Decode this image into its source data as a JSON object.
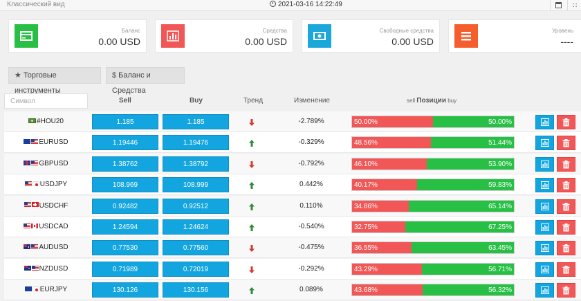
{
  "topbar": {
    "view_mode": "Классический вид",
    "datetime": "2021-03-16 14:22:49"
  },
  "cards": [
    {
      "label": "Баланс",
      "value": "0.00 USD",
      "color": "#27c045",
      "icon": "credit-card-icon"
    },
    {
      "label": "Средства",
      "value": "0.00 USD",
      "color": "#f25757",
      "icon": "bar-chart-icon"
    },
    {
      "label": "Свободные средства",
      "value": "0.00 USD",
      "color": "#1ba7da",
      "icon": "money-icon"
    },
    {
      "label": "Уровень",
      "value": "----",
      "color": "#f55d2c",
      "icon": "list-icon"
    }
  ],
  "tabs": [
    {
      "label": "Торговые инструменты",
      "icon": "star-icon"
    },
    {
      "label": "Баланс и Средства",
      "icon": "dollar-icon"
    }
  ],
  "table": {
    "search_placeholder": "Символ",
    "headers": {
      "sell": "Sell",
      "buy": "Buy",
      "trend": "Тренд",
      "change": "Изменение",
      "positions_sell": "sell",
      "positions_title": "Позиции",
      "positions_buy": "buy"
    },
    "rows": [
      {
        "symbol": "#HOU20",
        "flags": [
          "cfd"
        ],
        "sell": "1.185",
        "buy": "1.185",
        "trend": "down",
        "change": "-2.789%",
        "sell_pct": "50.00%",
        "buy_pct": "50.00%",
        "sell_frac": 0.5
      },
      {
        "symbol": "EURUSD",
        "flags": [
          "eu",
          "us"
        ],
        "sell": "1.19446",
        "buy": "1.19476",
        "trend": "up",
        "change": "-0.329%",
        "sell_pct": "48.56%",
        "buy_pct": "51.44%",
        "sell_frac": 0.4856
      },
      {
        "symbol": "GBPUSD",
        "flags": [
          "gb",
          "us"
        ],
        "sell": "1.38762",
        "buy": "1.38792",
        "trend": "down",
        "change": "-0.792%",
        "sell_pct": "46.10%",
        "buy_pct": "53.90%",
        "sell_frac": 0.461
      },
      {
        "symbol": "USDJPY",
        "flags": [
          "us",
          "jp"
        ],
        "sell": "108.969",
        "buy": "108.999",
        "trend": "up",
        "change": "0.442%",
        "sell_pct": "40.17%",
        "buy_pct": "59.83%",
        "sell_frac": 0.4017
      },
      {
        "symbol": "USDCHF",
        "flags": [
          "us",
          "ch"
        ],
        "sell": "0.92482",
        "buy": "0.92512",
        "trend": "up",
        "change": "0.110%",
        "sell_pct": "34.86%",
        "buy_pct": "65.14%",
        "sell_frac": 0.3486
      },
      {
        "symbol": "USDCAD",
        "flags": [
          "us",
          "ca"
        ],
        "sell": "1.24594",
        "buy": "1.24624",
        "trend": "up",
        "change": "-0.540%",
        "sell_pct": "32.75%",
        "buy_pct": "67.25%",
        "sell_frac": 0.3275
      },
      {
        "symbol": "AUDUSD",
        "flags": [
          "au",
          "us"
        ],
        "sell": "0.77530",
        "buy": "0.77560",
        "trend": "down",
        "change": "-0.475%",
        "sell_pct": "36.55%",
        "buy_pct": "63.45%",
        "sell_frac": 0.3655
      },
      {
        "symbol": "NZDUSD",
        "flags": [
          "nz",
          "us"
        ],
        "sell": "0.71989",
        "buy": "0.72019",
        "trend": "down",
        "change": "-0.292%",
        "sell_pct": "43.29%",
        "buy_pct": "56.71%",
        "sell_frac": 0.4329
      },
      {
        "symbol": "EURJPY",
        "flags": [
          "eu",
          "jp"
        ],
        "sell": "130.126",
        "buy": "130.156",
        "trend": "up",
        "change": "0.089%",
        "sell_pct": "43.68%",
        "buy_pct": "56.32%",
        "sell_frac": 0.4368
      }
    ]
  },
  "colors": {
    "sell": "#f25757",
    "buy": "#27c045",
    "price": "#13a5df",
    "trend_up": "#2e8b3a",
    "trend_down": "#d63a2f"
  }
}
